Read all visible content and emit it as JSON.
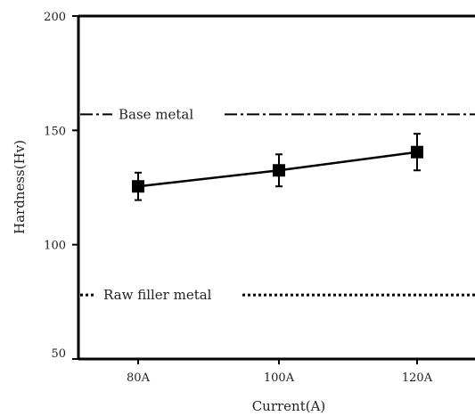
{
  "chart_data": {
    "type": "line",
    "categories": [
      "80A",
      "100A",
      "120A"
    ],
    "series": [
      {
        "values": [
          125.5,
          132.5,
          140.5
        ],
        "err_low": [
          6,
          7,
          8
        ],
        "err_high": [
          6,
          7,
          8
        ]
      }
    ],
    "reference_lines": [
      {
        "label": "Base metal",
        "value": 157,
        "style": "dash-dot"
      },
      {
        "label": "Raw filler metal",
        "value": 78,
        "style": "dotted"
      }
    ],
    "xlabel": "Current(A)",
    "ylabel": "Hardness(Hv)",
    "ylim": [
      50,
      200
    ],
    "yticks": [
      50,
      100,
      150,
      200
    ],
    "grid": false,
    "marker": "square",
    "color": "#000000"
  }
}
